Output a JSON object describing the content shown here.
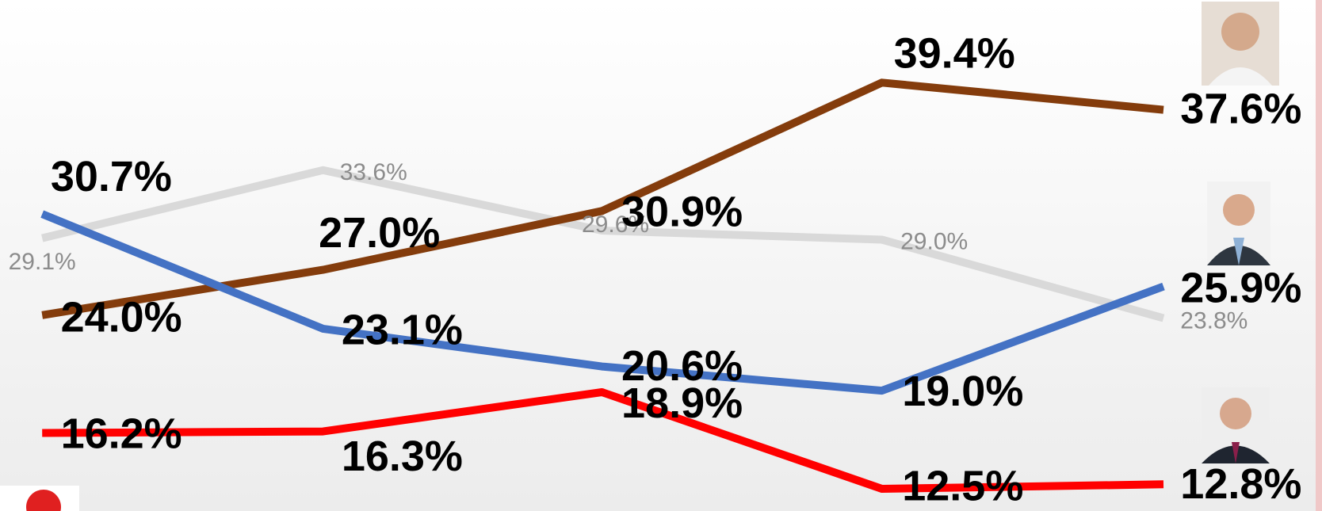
{
  "chart_data": {
    "type": "line",
    "categories": [
      null,
      null,
      null,
      null,
      null
    ],
    "series": [
      {
        "color": "#d9d9d9",
        "values": [
          29.1,
          33.6,
          29.6,
          29.0,
          23.8
        ],
        "value_labels": [
          "29.1%",
          "33.6%",
          "29.6%",
          "29.0%",
          "23.8%"
        ]
      },
      {
        "color": "#843c0c",
        "values": [
          24.0,
          27.0,
          30.9,
          39.4,
          37.6
        ],
        "value_labels": [
          "24.0%",
          "27.0%",
          "30.9%",
          "39.4%",
          "37.6%"
        ]
      },
      {
        "color": "#4472c4",
        "values": [
          30.7,
          23.1,
          20.6,
          19.0,
          25.9
        ],
        "value_labels": [
          "30.7%",
          "23.1%",
          "20.6%",
          "19.0%",
          "25.9%"
        ]
      },
      {
        "color": "#ff0000",
        "values": [
          16.2,
          16.3,
          18.9,
          12.5,
          12.8
        ],
        "value_labels": [
          "16.2%",
          "16.3%",
          "18.9%",
          "12.5%",
          "12.8%"
        ]
      }
    ]
  }
}
